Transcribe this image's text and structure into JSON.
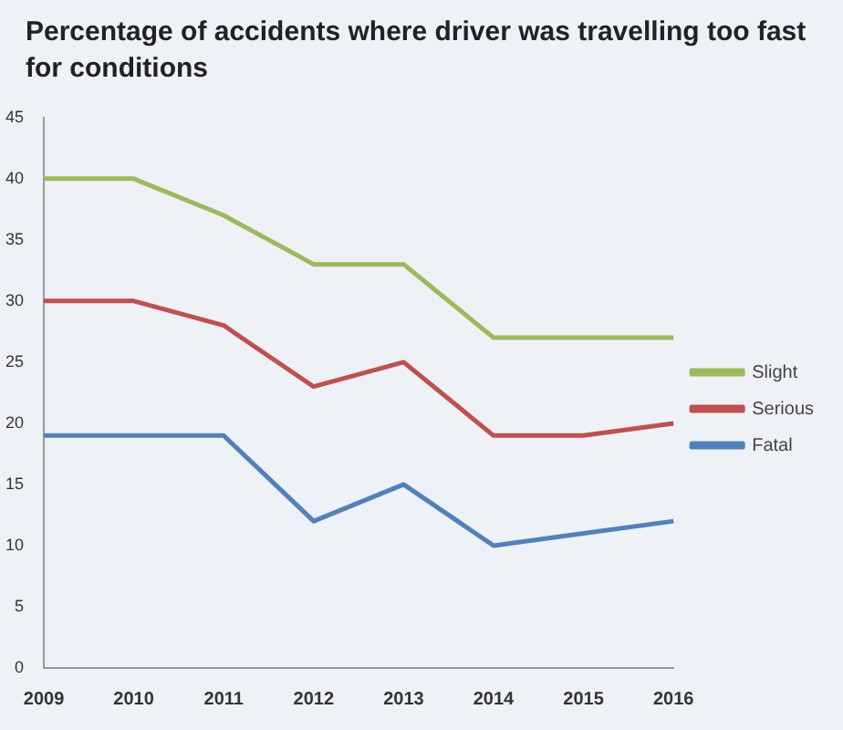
{
  "chart_data": {
    "type": "line",
    "title": "Percentage of accidents where driver was travelling too fast for conditions",
    "categories": [
      "2009",
      "2010",
      "2011",
      "2012",
      "2013",
      "2014",
      "2015",
      "2016"
    ],
    "series": [
      {
        "name": "Slight",
        "color": "#9bbb59",
        "values": [
          40,
          40,
          37,
          33,
          33,
          27,
          27,
          27
        ]
      },
      {
        "name": "Serious",
        "color": "#c0504d",
        "values": [
          30,
          30,
          28,
          23,
          25,
          19,
          19,
          20
        ]
      },
      {
        "name": "Fatal",
        "color": "#4f81bd",
        "values": [
          19,
          19,
          19,
          12,
          15,
          10,
          11,
          12
        ]
      }
    ],
    "ylim": [
      0,
      45
    ],
    "yticks": [
      0,
      5,
      10,
      15,
      20,
      25,
      30,
      35,
      40,
      45
    ],
    "grid": false,
    "legend": "right",
    "marker": "none"
  }
}
